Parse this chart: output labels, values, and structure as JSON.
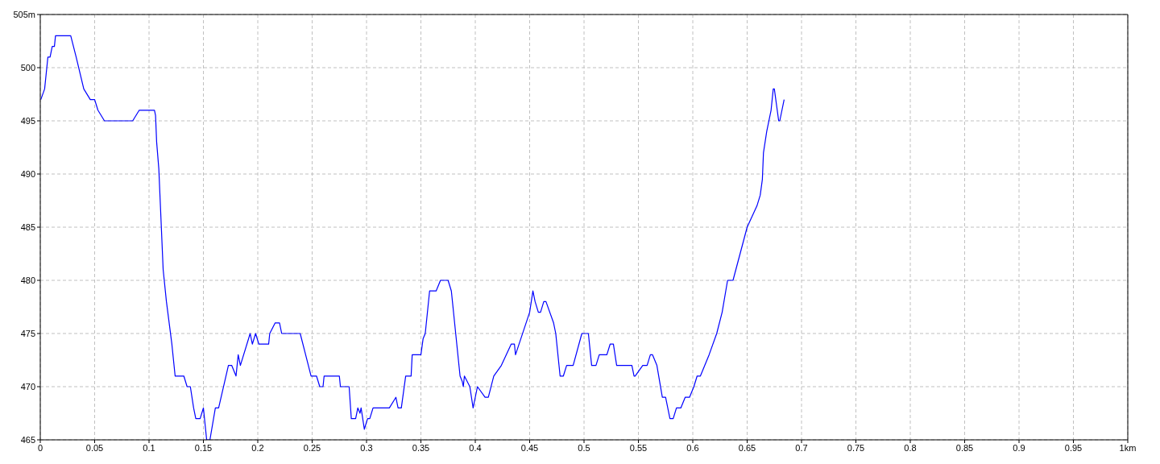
{
  "chart_data": {
    "type": "line",
    "x": [
      0.0005,
      0.004,
      0.005,
      0.007,
      0.009,
      0.011,
      0.013,
      0.014,
      0.028,
      0.033,
      0.04,
      0.046,
      0.05,
      0.053,
      0.059,
      0.085,
      0.091,
      0.105,
      0.106,
      0.107,
      0.109,
      0.113,
      0.114,
      0.116,
      0.121,
      0.124,
      0.126,
      0.132,
      0.135,
      0.138,
      0.141,
      0.143,
      0.147,
      0.15,
      0.152,
      0.153,
      0.156,
      0.161,
      0.164,
      0.173,
      0.176,
      0.18,
      0.182,
      0.184,
      0.193,
      0.195,
      0.198,
      0.201,
      0.21,
      0.211,
      0.216,
      0.22,
      0.222,
      0.239,
      0.244,
      0.249,
      0.254,
      0.257,
      0.26,
      0.261,
      0.275,
      0.276,
      0.279,
      0.284,
      0.286,
      0.29,
      0.292,
      0.294,
      0.295,
      0.298,
      0.301,
      0.303,
      0.306,
      0.321,
      0.327,
      0.329,
      0.332,
      0.336,
      0.341,
      0.342,
      0.35,
      0.352,
      0.354,
      0.358,
      0.364,
      0.368,
      0.375,
      0.378,
      0.383,
      0.386,
      0.388,
      0.389,
      0.39,
      0.395,
      0.398,
      0.402,
      0.409,
      0.412,
      0.417,
      0.424,
      0.433,
      0.436,
      0.437,
      0.45,
      0.453,
      0.455,
      0.458,
      0.46,
      0.463,
      0.465,
      0.472,
      0.474,
      0.478,
      0.481,
      0.484,
      0.49,
      0.498,
      0.504,
      0.507,
      0.511,
      0.514,
      0.521,
      0.524,
      0.527,
      0.53,
      0.544,
      0.546,
      0.547,
      0.554,
      0.558,
      0.561,
      0.563,
      0.567,
      0.572,
      0.575,
      0.579,
      0.582,
      0.585,
      0.589,
      0.593,
      0.597,
      0.601,
      0.604,
      0.607,
      0.615,
      0.622,
      0.627,
      0.632,
      0.637,
      0.65,
      0.659,
      0.662,
      0.664,
      0.665,
      0.668,
      0.672,
      0.674,
      0.675,
      0.679,
      0.68,
      0.684
    ],
    "series": [
      {
        "color": "#0000ff",
        "values": [
          497,
          498,
          499,
          501,
          501,
          502,
          502,
          503,
          503,
          501,
          498,
          497,
          497,
          496,
          495,
          495,
          496,
          496,
          495.5,
          493,
          490.5,
          481,
          480,
          478,
          474,
          471,
          471,
          471,
          470,
          470,
          468,
          467,
          467,
          468,
          466,
          465,
          465,
          468,
          468,
          472,
          472,
          471,
          473,
          472,
          475,
          474,
          475,
          474,
          474,
          475,
          476,
          476,
          475,
          475,
          473,
          471,
          471,
          470,
          470,
          471,
          471,
          470,
          470,
          470,
          467,
          467,
          468,
          467.5,
          468,
          466,
          467,
          467,
          468,
          468,
          469,
          468,
          468,
          471,
          471,
          473,
          473,
          474.5,
          475,
          479,
          479,
          480,
          480,
          479,
          474,
          471,
          470.5,
          470,
          471,
          470,
          468,
          470,
          469,
          469,
          471,
          472,
          474,
          474,
          473,
          477,
          479,
          478,
          477,
          477,
          478,
          478,
          476,
          475,
          471,
          471,
          472,
          472,
          475,
          475,
          472,
          472,
          473,
          473,
          474,
          474,
          472,
          472,
          471,
          471,
          472,
          472,
          473,
          473,
          472,
          469,
          469,
          467,
          467,
          468,
          468,
          469,
          469,
          470,
          471,
          471,
          473,
          475,
          477,
          480,
          480,
          485,
          487,
          488,
          489.5,
          492,
          494,
          496,
          498,
          498,
          495,
          495,
          497
        ]
      }
    ],
    "xlim": [
      0,
      1
    ],
    "ylim": [
      465,
      505
    ],
    "xticks": [
      0,
      0.05,
      0.1,
      0.15,
      0.2,
      0.25,
      0.3,
      0.35,
      0.4,
      0.45,
      0.5,
      0.55,
      0.6,
      0.65,
      0.7,
      0.75,
      0.8,
      0.85,
      0.9,
      0.95,
      {
        "value": 1,
        "label": "1km"
      }
    ],
    "yticks": [
      465,
      470,
      475,
      480,
      485,
      490,
      495,
      500,
      {
        "value": 505,
        "label": "505m"
      }
    ],
    "grid": true,
    "line_style": "solid"
  }
}
